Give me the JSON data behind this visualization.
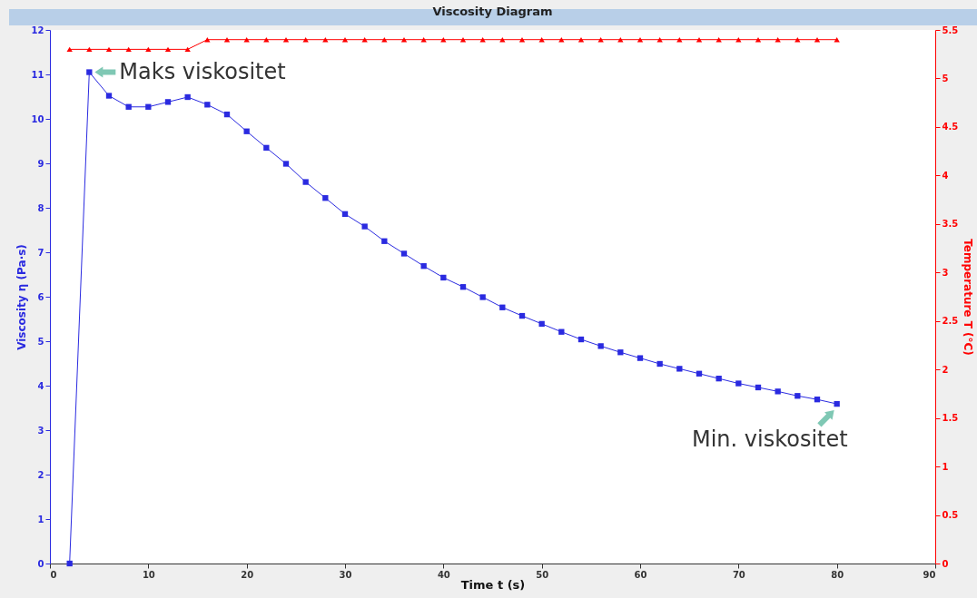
{
  "chart_data": {
    "type": "line",
    "title": "Viscosity Diagram",
    "xlabel": "Time t (s)",
    "ylabel": "Viscosity η (Pa·s)",
    "y2label": "Temperature T (°C)",
    "x": [
      2,
      4,
      6,
      8,
      10,
      12,
      14,
      16,
      18,
      20,
      22,
      24,
      26,
      28,
      30,
      32,
      34,
      36,
      38,
      40,
      42,
      44,
      46,
      48,
      50,
      52,
      54,
      56,
      58,
      60,
      62,
      64,
      66,
      68,
      70,
      72,
      74,
      76,
      78,
      80
    ],
    "series": [
      {
        "color": "#2a2ae0",
        "marker": "square",
        "values": [
          0,
          11.05,
          10.52,
          10.27,
          10.27,
          10.38,
          10.49,
          10.32,
          10.1,
          9.72,
          9.35,
          8.99,
          8.58,
          8.22,
          7.86,
          7.58,
          7.25,
          6.97,
          6.69,
          6.43,
          6.22,
          5.99,
          5.76,
          5.57,
          5.39,
          5.21,
          5.04,
          4.89,
          4.75,
          4.62,
          4.49,
          4.38,
          4.27,
          4.16,
          4.05,
          3.96,
          3.87,
          3.77,
          3.69,
          3.59
        ]
      },
      {
        "color": "#ff0000",
        "marker": "triangle",
        "axis": "y2",
        "values": [
          5.3,
          5.3,
          5.3,
          5.3,
          5.3,
          5.3,
          5.3,
          5.4,
          5.4,
          5.4,
          5.4,
          5.4,
          5.4,
          5.4,
          5.4,
          5.4,
          5.4,
          5.4,
          5.4,
          5.4,
          5.4,
          5.4,
          5.4,
          5.4,
          5.4,
          5.4,
          5.4,
          5.4,
          5.4,
          5.4,
          5.4,
          5.4,
          5.4,
          5.4,
          5.4,
          5.4,
          5.4,
          5.4,
          5.4,
          5.4
        ]
      }
    ],
    "xlim": [
      0,
      90
    ],
    "xticks": [
      0,
      10,
      20,
      30,
      40,
      50,
      60,
      70,
      80,
      90
    ],
    "ylim": [
      0,
      12
    ],
    "yticks": [
      0,
      1,
      2,
      3,
      4,
      5,
      6,
      7,
      8,
      9,
      10,
      11,
      12
    ],
    "y2lim": [
      0,
      5.5
    ],
    "y2ticks": [
      0,
      0.5,
      1,
      1.5,
      2,
      2.5,
      3,
      3.5,
      4,
      4.5,
      5,
      5.5
    ],
    "annotations": [
      {
        "text": "Maks viskositet",
        "x": 4,
        "y": 11.05
      },
      {
        "text": "Min. viskositet",
        "x": 80,
        "y": 3.59
      }
    ],
    "grid": false
  }
}
